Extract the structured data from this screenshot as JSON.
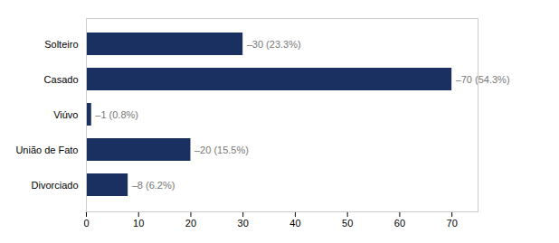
{
  "chart_data": {
    "type": "bar",
    "orientation": "horizontal",
    "categories": [
      "Solteiro",
      "Casado",
      "Viúvo",
      "União de Fato",
      "Divorciado"
    ],
    "values": [
      30,
      70,
      1,
      20,
      8
    ],
    "value_labels": [
      "–30 (23.3%)",
      "–70 (54.3%)",
      "–1 (0.8%)",
      "–20 (15.5%)",
      "–8 (6.2%)"
    ],
    "data_labels": true,
    "color": "#1a3060",
    "xlim": [
      0,
      75
    ],
    "xticks": [
      0,
      10,
      20,
      30,
      40,
      50,
      60,
      70
    ],
    "grid": false
  }
}
